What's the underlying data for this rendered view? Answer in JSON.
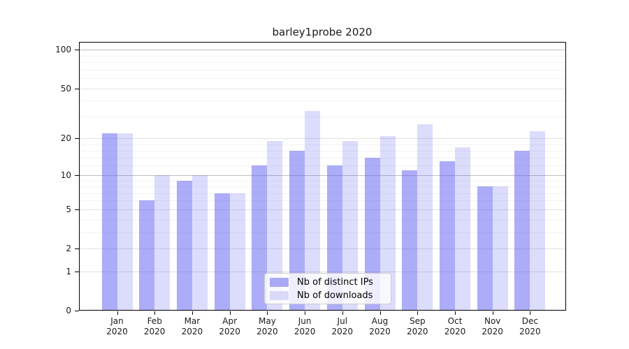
{
  "chart_data": {
    "type": "bar",
    "title": "barley1probe 2020",
    "xlabel": "",
    "ylabel": "",
    "yscale": "log1p",
    "ylim": [
      0,
      115
    ],
    "grid": true,
    "categories": [
      "Jan 2020",
      "Feb 2020",
      "Mar 2020",
      "Apr 2020",
      "May 2020",
      "Jun 2020",
      "Jul 2020",
      "Aug 2020",
      "Sep 2020",
      "Oct 2020",
      "Nov 2020",
      "Dec 2020"
    ],
    "x_tick_months": [
      "Jan",
      "Feb",
      "Mar",
      "Apr",
      "May",
      "Jun",
      "Jul",
      "Aug",
      "Sep",
      "Oct",
      "Nov",
      "Dec"
    ],
    "x_tick_year": "2020",
    "y_ticks": [
      100,
      50,
      20,
      10,
      5,
      2,
      1,
      0
    ],
    "y_major_gridlines": [
      10,
      100
    ],
    "y_minor_gridlines": [
      3,
      4,
      6,
      7,
      8,
      9,
      12,
      14,
      16,
      18,
      30,
      40,
      60,
      70,
      80,
      90
    ],
    "series": [
      {
        "name": "Nb of distinct IPs",
        "swatch_color": "#a9a9f6",
        "fill_rgba": "rgba(95,95,242,0.52)",
        "values": [
          22,
          6,
          9,
          7,
          12,
          16,
          12,
          14,
          11,
          13,
          8,
          16
        ]
      },
      {
        "name": "Nb of downloads",
        "swatch_color": "#dadaf8",
        "fill_rgba": "rgba(95,95,242,0.22)",
        "values": [
          22,
          10,
          10,
          7,
          19,
          33,
          19,
          21,
          26,
          17,
          8,
          23
        ]
      }
    ],
    "legend": {
      "position": "lower center",
      "entries": [
        "Nb of distinct IPs",
        "Nb of downloads"
      ]
    },
    "colors": {
      "spine": "#000000",
      "major_gridline": "#bfbfbf",
      "tick_gridline": "#e0e0e0",
      "minor_gridline": "#f2f2f2",
      "text": "#1a1a1a"
    }
  }
}
